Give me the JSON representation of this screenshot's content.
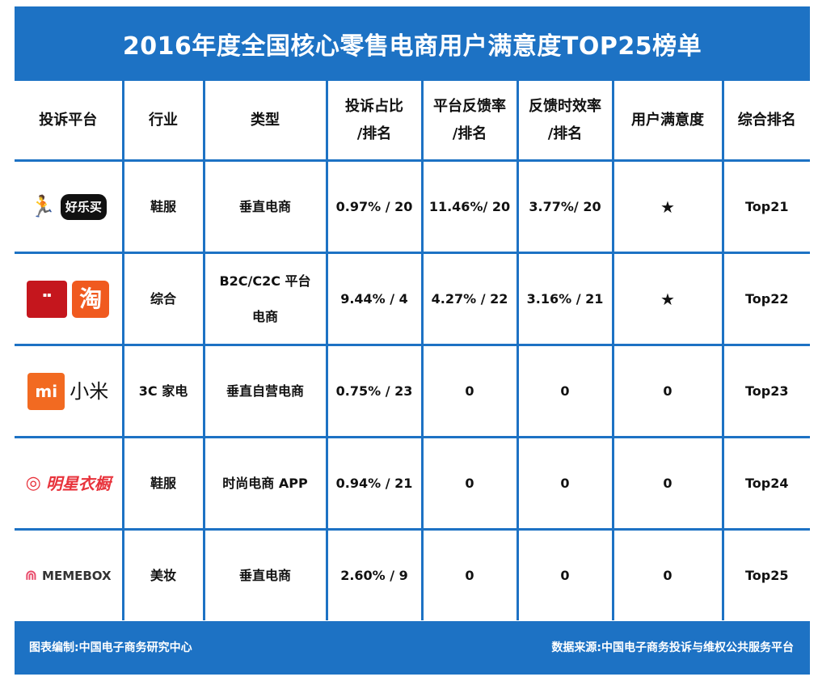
{
  "title": "2016年度全国核心零售电商用户满意度TOP25榜单",
  "headers": {
    "platform": "投诉平台",
    "industry": "行业",
    "type": "类型",
    "complaint_ratio_l1": "投诉占比",
    "complaint_ratio_l2": "/排名",
    "feedback_rate_l1": "平台反馈率",
    "feedback_rate_l2": "/排名",
    "timeliness_l1": "反馈时效率",
    "timeliness_l2": "/排名",
    "satisfaction": "用户满意度",
    "overall_rank": "综合排名"
  },
  "rows": [
    {
      "logo_text": "好乐买",
      "logo_icon": "okbuy-logo",
      "industry": "鞋服",
      "type_l1": "垂直电商",
      "type_l2": "",
      "complaint": "0.97% /  20",
      "feedback": "11.46%/ 20",
      "timeliness": "3.77%/  20",
      "satisfaction": "★",
      "rank": "Top21"
    },
    {
      "logo_text": "淘",
      "logo_icon": "tmall-taobao-logo",
      "industry": "综合",
      "type_l1": "B2C/C2C 平台",
      "type_l2": "电商",
      "complaint": "9.44%  /  4",
      "feedback": "4.27% / 22",
      "timeliness": "3.16% / 21",
      "satisfaction": "★",
      "rank": "Top22"
    },
    {
      "logo_text": "小米",
      "logo_icon": "mi-logo",
      "industry": "3C 家电",
      "type_l1": "垂直自营电商",
      "type_l2": "",
      "complaint": "0.75% / 23",
      "feedback": "0",
      "timeliness": "0",
      "satisfaction": "0",
      "rank": "Top23"
    },
    {
      "logo_text": "明星衣橱",
      "logo_icon": "mingxing-logo",
      "industry": "鞋服",
      "type_l1": "时尚电商 APP",
      "type_l2": "",
      "complaint": "0.94% / 21",
      "feedback": "0",
      "timeliness": "0",
      "satisfaction": "0",
      "rank": "Top24"
    },
    {
      "logo_text": "MEMEBOX",
      "logo_icon": "memebox-logo",
      "industry": "美妆",
      "type_l1": "垂直电商",
      "type_l2": "",
      "complaint": "2.60% /  9",
      "feedback": "0",
      "timeliness": "0",
      "satisfaction": "0",
      "rank": "Top25"
    }
  ],
  "footer": {
    "left": "图表编制:中国电子商务研究中心",
    "right": "数据来源:中国电子商务投诉与维权公共服务平台"
  },
  "colors": {
    "frame": "#1d72c4"
  }
}
